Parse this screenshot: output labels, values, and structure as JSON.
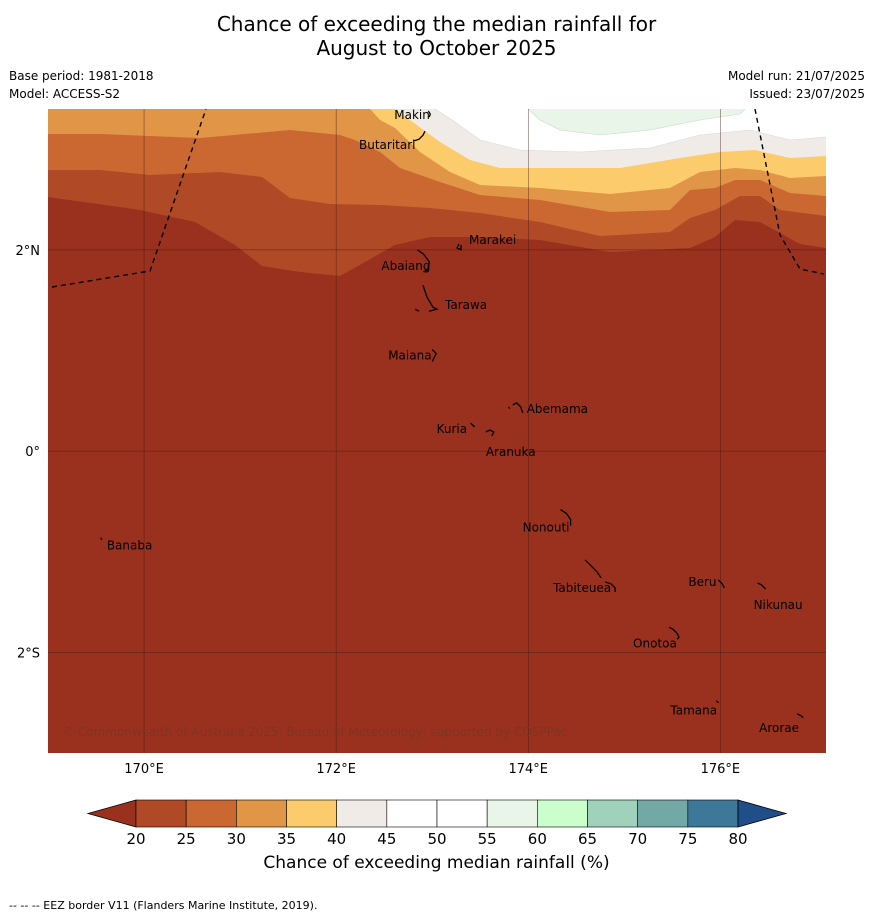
{
  "title": {
    "line1": "Chance of exceeding the median rainfall for",
    "line2": "August to October 2025"
  },
  "meta_left": {
    "base_period": "Base period: 1981-2018",
    "model": "Model: ACCESS-S2"
  },
  "meta_right": {
    "model_run": "Model run: 21/07/2025",
    "issued": "Issued: 23/07/2025"
  },
  "map": {
    "lon_range": [
      169.0,
      177.1
    ],
    "lat_range": [
      -3.0,
      3.4
    ],
    "lon_ticks": [
      {
        "value": 170,
        "label": "170°E"
      },
      {
        "value": 172,
        "label": "172°E"
      },
      {
        "value": 174,
        "label": "174°E"
      },
      {
        "value": 176,
        "label": "176°E"
      }
    ],
    "lat_ticks": [
      {
        "value": 2,
        "label": "2°N"
      },
      {
        "value": 0,
        "label": "0°"
      },
      {
        "value": -2,
        "label": "2°S"
      }
    ],
    "copyright": "© Commonwealth of Australia 2025, Bureau of Meteorology, supported by COSPPac",
    "islands": [
      {
        "name": "Makin",
        "lon": 172.98,
        "lat": 3.34
      },
      {
        "name": "Butaritari",
        "lon": 172.8,
        "lat": 3.08
      },
      {
        "name": "Marakei",
        "lon": 173.3,
        "lat": 2.02
      },
      {
        "name": "Abaiang",
        "lon": 172.95,
        "lat": 1.86
      },
      {
        "name": "Tarawa",
        "lon": 173.05,
        "lat": 1.45
      },
      {
        "name": "Maiana",
        "lon": 173.0,
        "lat": 0.95
      },
      {
        "name": "Abemama",
        "lon": 173.88,
        "lat": 0.4
      },
      {
        "name": "Kuria",
        "lon": 173.4,
        "lat": 0.22
      },
      {
        "name": "Aranuka",
        "lon": 173.6,
        "lat": 0.17
      },
      {
        "name": "Banaba",
        "lon": 169.55,
        "lat": -0.88
      },
      {
        "name": "Nonouti",
        "lon": 174.42,
        "lat": -0.7
      },
      {
        "name": "Beru",
        "lon": 176.0,
        "lat": -1.32
      },
      {
        "name": "Nikunau",
        "lon": 176.45,
        "lat": -1.35
      },
      {
        "name": "Tabiteuea",
        "lon": 174.8,
        "lat": -1.3
      },
      {
        "name": "Onotoa",
        "lon": 175.57,
        "lat": -1.83
      },
      {
        "name": "Tamana",
        "lon": 175.98,
        "lat": -2.5
      },
      {
        "name": "Arorae",
        "lon": 176.82,
        "lat": -2.65
      }
    ]
  },
  "colorbar": {
    "ticks": [
      "20",
      "25",
      "30",
      "35",
      "40",
      "45",
      "50",
      "55",
      "60",
      "65",
      "70",
      "75",
      "80"
    ],
    "colors": {
      "below_20": "#9a311f",
      "20_25": "#b04926",
      "25_30": "#cb6832",
      "30_35": "#e19547",
      "35_40": "#fccb6b",
      "40_45": "#f0ebe6",
      "45_50": "#ffffff",
      "50_55": "#ffffff",
      "55_60": "#e9f5e8",
      "60_65": "#ccfdcc",
      "65_70": "#a0d2bb",
      "70_75": "#72a9a6",
      "75_80": "#3d7899",
      "above_80": "#1f4e88"
    },
    "label": "Chance of exceeding median rainfall (%)"
  },
  "footer": "--  --  -- EEZ border V11 (Flanders Marine Institute, 2019)."
}
